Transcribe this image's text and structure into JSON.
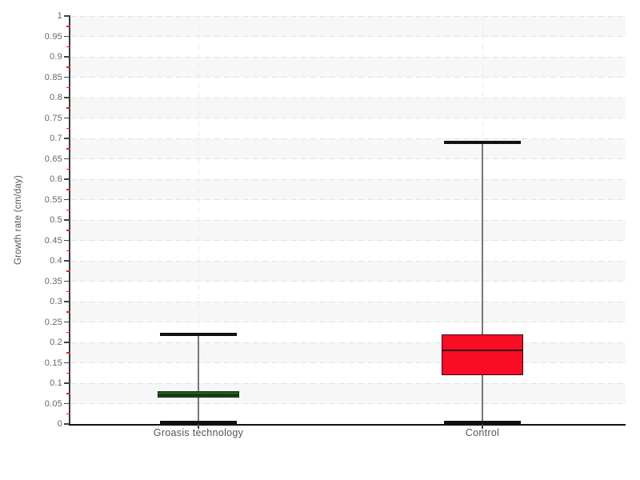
{
  "chart_data": {
    "type": "boxplot",
    "title": "",
    "xlabel": "",
    "ylabel": "Growth rate (cm/day)",
    "ylim": [
      0,
      1
    ],
    "y_major_step": 0.05,
    "y_minor_step": 0.025,
    "y_tick_labels": [
      "0",
      "0.05",
      "0.1",
      "0.15",
      "0.2",
      "0.25",
      "0.3",
      "0.35",
      "0.4",
      "0.45",
      "0.5",
      "0.55",
      "0.6",
      "0.65",
      "0.7",
      "0.75",
      "0.8",
      "0.85",
      "0.9",
      "0.95",
      "1"
    ],
    "categories": [
      "Groasis technology",
      "Control"
    ],
    "series": [
      {
        "name": "Groasis technology",
        "min": 0,
        "q1": 0.065,
        "median": 0.07,
        "q3": 0.08,
        "max": 0.22,
        "box_fill": "#1e5c1e",
        "box_border": "#11300f"
      },
      {
        "name": "Control",
        "min": 0,
        "q1": 0.12,
        "median": 0.18,
        "q3": 0.22,
        "max": 0.69,
        "box_fill": "#f80d24",
        "box_border": "#38090f"
      }
    ],
    "legend": "none",
    "grid": {
      "horizontal": "dashed line every 0.05",
      "vertical": "dashed line at each category center",
      "row_bands": "alternating gray/white every 0.05"
    }
  },
  "style": {
    "background": "#ffffff",
    "band_color": "#f7f7f7",
    "grid_color": "#e3e3e3",
    "v_grid_color": "#ececec",
    "axis_color": "#3a3a3a",
    "x_axis_color": "#111111",
    "major_tick_color": "#444444",
    "minor_tick_color": "#e8251d",
    "whisker_color": "#777777",
    "cap_color": "#111111",
    "label_color": "#666666"
  }
}
